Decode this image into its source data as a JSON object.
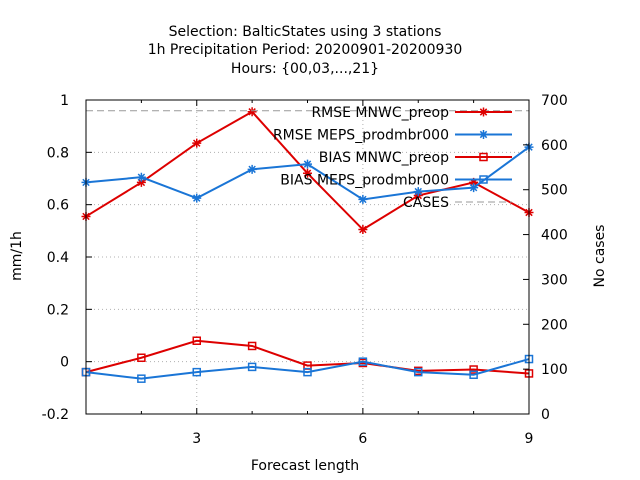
{
  "chart_data": {
    "type": "line",
    "title_lines": [
      "Selection: BalticStates using     3 stations",
      "1h Precipitation    Period: 20200901-20200930",
      "Hours: {00,03,...,21}"
    ],
    "xlabel": "Forecast length",
    "ylabel": "mm/1h",
    "y2label": "No cases",
    "xlim": [
      1,
      9
    ],
    "ylim": [
      -0.2,
      1.0
    ],
    "y2lim": [
      0,
      700
    ],
    "xticks": [
      3,
      6,
      9
    ],
    "yticks": [
      -0.2,
      0,
      0.2,
      0.4,
      0.6,
      0.8,
      1
    ],
    "y2ticks": [
      0,
      100,
      200,
      300,
      400,
      500,
      600,
      700
    ],
    "grid": true,
    "legend_position": "top-right",
    "x": [
      1,
      2,
      3,
      4,
      5,
      6,
      7,
      8,
      9
    ],
    "series": [
      {
        "name": "RMSE MNWC_preop",
        "axis": "y",
        "color": "#dd0000",
        "marker": "star",
        "values": [
          0.555,
          0.685,
          0.835,
          0.955,
          0.72,
          0.505,
          0.635,
          0.685,
          0.57
        ]
      },
      {
        "name": "RMSE MEPS_prodmbr000",
        "axis": "y",
        "color": "#1a75d6",
        "marker": "star",
        "values": [
          0.685,
          0.705,
          0.625,
          0.735,
          0.755,
          0.62,
          0.65,
          0.665,
          0.82
        ]
      },
      {
        "name": "BIAS MNWC_preop",
        "axis": "y",
        "color": "#dd0000",
        "marker": "square",
        "values": [
          -0.04,
          0.015,
          0.08,
          0.06,
          -0.015,
          -0.005,
          -0.035,
          -0.03,
          -0.045
        ]
      },
      {
        "name": "BIAS MEPS_prodmbr000",
        "axis": "y",
        "color": "#1a75d6",
        "marker": "square",
        "values": [
          -0.04,
          -0.065,
          -0.04,
          -0.02,
          -0.04,
          0.0,
          -0.04,
          -0.05,
          0.01
        ]
      },
      {
        "name": "CASES",
        "axis": "y2",
        "color": "#999999",
        "marker": "none",
        "dashed": true,
        "values": [
          676,
          676,
          676,
          676,
          676,
          676,
          676,
          676,
          676
        ]
      }
    ]
  }
}
